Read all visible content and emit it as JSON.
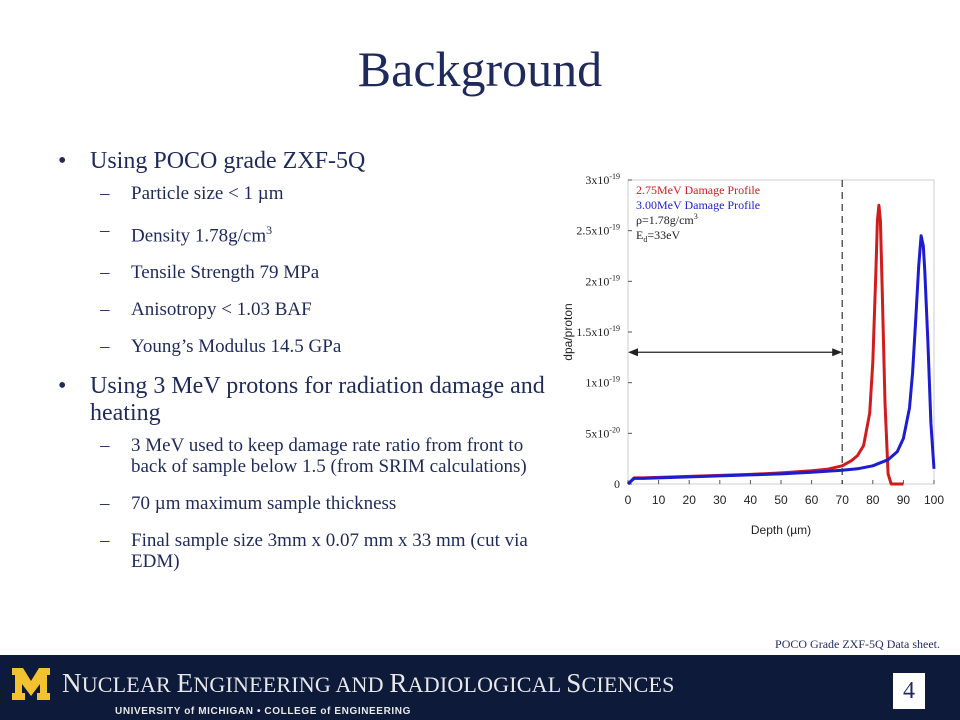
{
  "slide": {
    "title": "Background",
    "bullets": [
      {
        "text": "Using POCO grade ZXF-5Q",
        "subs": [
          {
            "pre": "Particle size < 1 µm"
          },
          {
            "pre": "Density 1.78g/cm",
            "sup": "3"
          },
          {
            "pre": "Tensile Strength 79 MPa"
          },
          {
            "pre": "Anisotropy < 1.03 BAF"
          },
          {
            "pre": "Young’s Modulus 14.5 GPa"
          }
        ]
      },
      {
        "text": "Using 3 MeV protons for radiation damage and heating",
        "subs": [
          {
            "pre": "3 MeV used to keep damage rate ratio from front to back of sample below 1.5 (from SRIM calculations)"
          },
          {
            "pre": "70 µm maximum sample thickness"
          },
          {
            "pre": "Final sample size 3mm x 0.07 mm x 33 mm (cut via EDM)"
          }
        ]
      }
    ],
    "source": "POCO Grade ZXF-5Q Data sheet.",
    "page_number": "4"
  },
  "footer": {
    "logo_letter": "M",
    "department": [
      {
        "cap": "N",
        "rest": "UCLEAR"
      },
      {
        "cap": "E",
        "rest": "NGINEERING AND"
      },
      {
        "cap": "R",
        "rest": "ADIOLOGICAL"
      },
      {
        "cap": "S",
        "rest": "CIENCES"
      }
    ],
    "university": "UNIVERSITY of MICHIGAN • COLLEGE of ENGINEERING",
    "colors": {
      "navy": "#0d1a3a",
      "maize": "#f2c230"
    }
  },
  "chart_data": {
    "type": "line",
    "xlabel": "Depth (µm)",
    "ylabel": "dpa/proton",
    "xlim": [
      0,
      100
    ],
    "ylim": [
      0,
      3e-19
    ],
    "x_ticks": [
      0,
      10,
      20,
      30,
      40,
      50,
      60,
      70,
      80,
      90,
      100
    ],
    "y_ticks": [
      {
        "base": "0",
        "exp": ""
      },
      {
        "base": "5x10",
        "exp": "-20"
      },
      {
        "base": "1x10",
        "exp": "-19"
      },
      {
        "base": "1.5x10",
        "exp": "-19"
      },
      {
        "base": "2x10",
        "exp": "-19"
      },
      {
        "base": "2.5x10",
        "exp": "-19"
      },
      {
        "base": "3x10",
        "exp": "-19"
      }
    ],
    "legend": [
      {
        "text": "2.75MeV Damage Profile",
        "color": "#d01c1c"
      },
      {
        "text": "3.00MeV Damage Profile",
        "color": "#1c1cd0"
      }
    ],
    "annotations": [
      {
        "pre": "ρ=1.78g/cm",
        "sup": "3",
        "sub": "",
        "post": ""
      },
      {
        "pre": "E",
        "sup": "",
        "sub": "d",
        "post": "=33eV"
      }
    ],
    "vline_x": 70,
    "arrow": {
      "from": 0,
      "to": 70,
      "y": 1.3e-19
    },
    "series": [
      {
        "name": "2.75MeV Damage Profile",
        "color": "#d01c1c",
        "x": [
          0,
          2,
          5,
          10,
          20,
          30,
          40,
          50,
          60,
          65,
          70,
          73,
          75,
          77,
          79,
          80,
          81,
          81.5,
          82,
          82.5,
          83,
          84,
          85,
          86,
          88,
          90
        ],
        "y": [
          0,
          6e-21,
          6e-21,
          6.5e-21,
          7.5e-21,
          8.5e-21,
          9.5e-21,
          1.1e-20,
          1.3e-20,
          1.45e-20,
          1.8e-20,
          2.3e-20,
          2.8e-20,
          3.8e-20,
          7e-20,
          1.2e-19,
          2.1e-19,
          2.6e-19,
          2.75e-19,
          2.6e-19,
          2e-19,
          8e-20,
          1e-20,
          0,
          0,
          0
        ]
      },
      {
        "name": "3.00MeV Damage Profile",
        "color": "#1c1cd0",
        "x": [
          0,
          2,
          5,
          10,
          20,
          30,
          40,
          50,
          60,
          70,
          75,
          80,
          85,
          88,
          90,
          92,
          93,
          94,
          95,
          95.8,
          96.5,
          97,
          98,
          99,
          100
        ],
        "y": [
          0,
          5.5e-21,
          5.5e-21,
          6e-21,
          7e-21,
          8e-21,
          9e-21,
          1e-20,
          1.15e-20,
          1.35e-20,
          1.5e-20,
          1.8e-20,
          2.4e-20,
          3.2e-20,
          4.5e-20,
          7.5e-20,
          1.1e-19,
          1.6e-19,
          2.15e-19,
          2.45e-19,
          2.35e-19,
          2.1e-19,
          1.4e-19,
          6e-20,
          1.5e-20
        ]
      }
    ]
  }
}
